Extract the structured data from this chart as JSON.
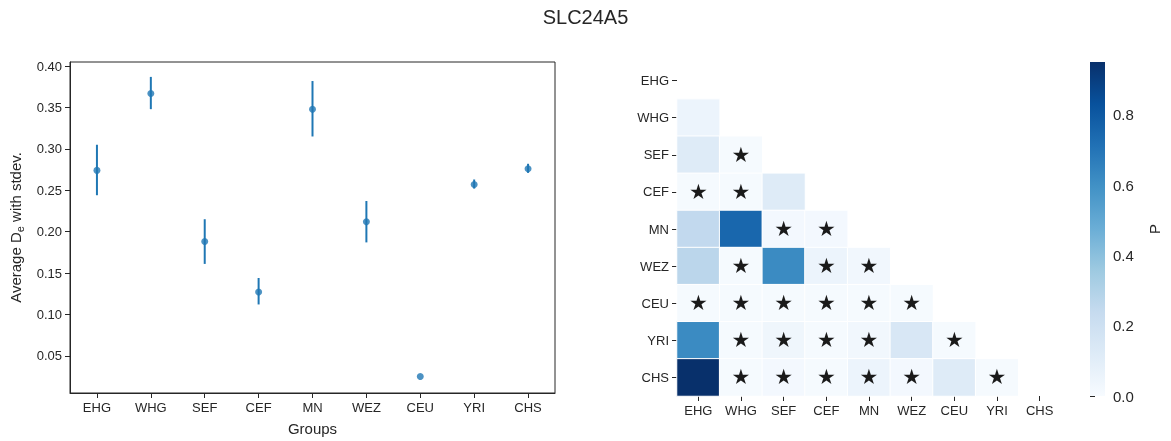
{
  "chart_data": [
    {
      "type": "scatter",
      "title": "SLC24A5",
      "xlabel": "Groups",
      "ylabel": "Average D$_{e}$ with stdev.",
      "categories": [
        "EHG",
        "WHG",
        "SEF",
        "CEF",
        "MN",
        "WEZ",
        "CEU",
        "YRI",
        "CHS"
      ],
      "series": [
        {
          "color": "#1f77b4",
          "values": [
            0.274,
            0.367,
            0.188,
            0.127,
            0.348,
            0.212,
            0.025,
            0.257,
            0.276
          ],
          "errors": [
            [
              0.244,
              0.305
            ],
            [
              0.348,
              0.387
            ],
            [
              0.161,
              0.215
            ],
            [
              0.112,
              0.144
            ],
            [
              0.315,
              0.382
            ],
            [
              0.187,
              0.237
            ],
            null,
            [
              0.252,
              0.263
            ],
            [
              0.271,
              0.282
            ]
          ]
        }
      ],
      "marker": "circle",
      "ylim": [
        0.005,
        0.405
      ],
      "yticks": [
        0.05,
        {
          "value": 0.1,
          "label": "0.10"
        },
        0.15,
        {
          "value": 0.2,
          "label": "0.20"
        },
        0.25,
        {
          "value": 0.3,
          "label": "0.30"
        },
        0.35,
        {
          "value": 0.4,
          "label": "0.40"
        }
      ]
    },
    {
      "type": "heatmap",
      "categories": [
        "EHG",
        "WHG",
        "SEF",
        "CEF",
        "MN",
        "WEZ",
        "CEU",
        "YRI",
        "CHS"
      ],
      "y_categories": [
        "EHG",
        "WHG",
        "SEF",
        "CEF",
        "MN",
        "WEZ",
        "CEU",
        "YRI",
        "CHS"
      ],
      "cells": [
        [
          null,
          null,
          null,
          null,
          null,
          null,
          null,
          null,
          null
        ],
        [
          0.05,
          null,
          null,
          null,
          null,
          null,
          null,
          null,
          null
        ],
        [
          0.12,
          0.01,
          null,
          null,
          null,
          null,
          null,
          null,
          null
        ],
        [
          0.01,
          0.01,
          0.12,
          null,
          null,
          null,
          null,
          null,
          null
        ],
        [
          0.25,
          0.75,
          0.02,
          0.02,
          null,
          null,
          null,
          null,
          null
        ],
        [
          0.27,
          0.01,
          0.62,
          0.05,
          0.03,
          null,
          null,
          null,
          null
        ],
        [
          0.01,
          0.01,
          0.01,
          0.01,
          0.01,
          0.01,
          null,
          null,
          null
        ],
        [
          0.62,
          0.01,
          0.04,
          0.01,
          0.03,
          0.15,
          0.01,
          null,
          null
        ],
        [
          0.95,
          0.01,
          0.02,
          0.01,
          0.05,
          0.02,
          0.12,
          0.01,
          null
        ]
      ],
      "cell_labels": [
        [
          null,
          null,
          null,
          null,
          null,
          null,
          null,
          null,
          null
        ],
        [
          null,
          null,
          null,
          null,
          null,
          null,
          null,
          null,
          null
        ],
        [
          null,
          "★",
          null,
          null,
          null,
          null,
          null,
          null,
          null
        ],
        [
          "★",
          "★",
          null,
          null,
          null,
          null,
          null,
          null,
          null
        ],
        [
          null,
          null,
          "★",
          "★",
          null,
          null,
          null,
          null,
          null
        ],
        [
          null,
          "★",
          null,
          "★",
          "★",
          null,
          null,
          null,
          null
        ],
        [
          "★",
          "★",
          "★",
          "★",
          "★",
          "★",
          null,
          null,
          null
        ],
        [
          null,
          "★",
          "★",
          "★",
          "★",
          null,
          "★",
          null,
          null
        ],
        [
          null,
          "★",
          "★",
          "★",
          "★",
          "★",
          null,
          "★",
          null
        ]
      ],
      "clim": [
        0,
        0.95
      ],
      "cticks": [
        {
          "value": 0,
          "label": "0.0"
        },
        0.2,
        0.4,
        0.6,
        0.8
      ],
      "clabel": "P"
    }
  ]
}
